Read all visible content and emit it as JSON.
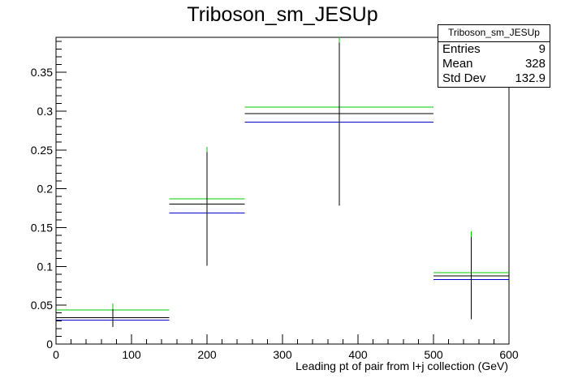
{
  "chart_data": {
    "type": "histogram",
    "title": "Triboson_sm_JESUp",
    "xlabel": "Leading pt of pair from l+j collection (GeV)",
    "ylabel": "",
    "xlim": [
      0,
      600
    ],
    "ylim": [
      0,
      0.395
    ],
    "x_ticks": [
      0,
      100,
      200,
      300,
      400,
      500,
      600
    ],
    "y_ticks": [
      0,
      0.05,
      0.1,
      0.15,
      0.2,
      0.25,
      0.3,
      0.35
    ],
    "x_tick_labels": [
      "0",
      "100",
      "200",
      "300",
      "400",
      "500",
      "600"
    ],
    "y_tick_labels": [
      "0",
      "0.05",
      "0.1",
      "0.15",
      "0.2",
      "0.25",
      "0.3",
      "0.35"
    ],
    "grid": false,
    "bins": [
      {
        "low": 0,
        "high": 150,
        "center": 75,
        "value": 0.034,
        "err_low": 0.022,
        "err_high": 0.052,
        "up": 0.044,
        "down": 0.031
      },
      {
        "low": 150,
        "high": 250,
        "center": 200,
        "value": 0.18,
        "err_low": 0.101,
        "err_high": 0.254,
        "up": 0.187,
        "down": 0.169
      },
      {
        "low": 250,
        "high": 500,
        "center": 375,
        "value": 0.297,
        "err_low": 0.178,
        "err_high": 0.395,
        "up": 0.305,
        "down": 0.286
      },
      {
        "low": 500,
        "high": 600,
        "center": 550,
        "value": 0.088,
        "err_low": 0.032,
        "err_high": 0.145,
        "up": 0.092,
        "down": 0.083
      }
    ],
    "colors": {
      "nominal": "#000000",
      "up": "#00cc00",
      "down": "#0000cc"
    }
  },
  "stats_box": {
    "title": "Triboson_sm_JESUp",
    "rows": [
      {
        "label": "Entries",
        "value": "9"
      },
      {
        "label": "Mean",
        "value": "328"
      },
      {
        "label": "Std Dev",
        "value": "132.9"
      }
    ]
  }
}
